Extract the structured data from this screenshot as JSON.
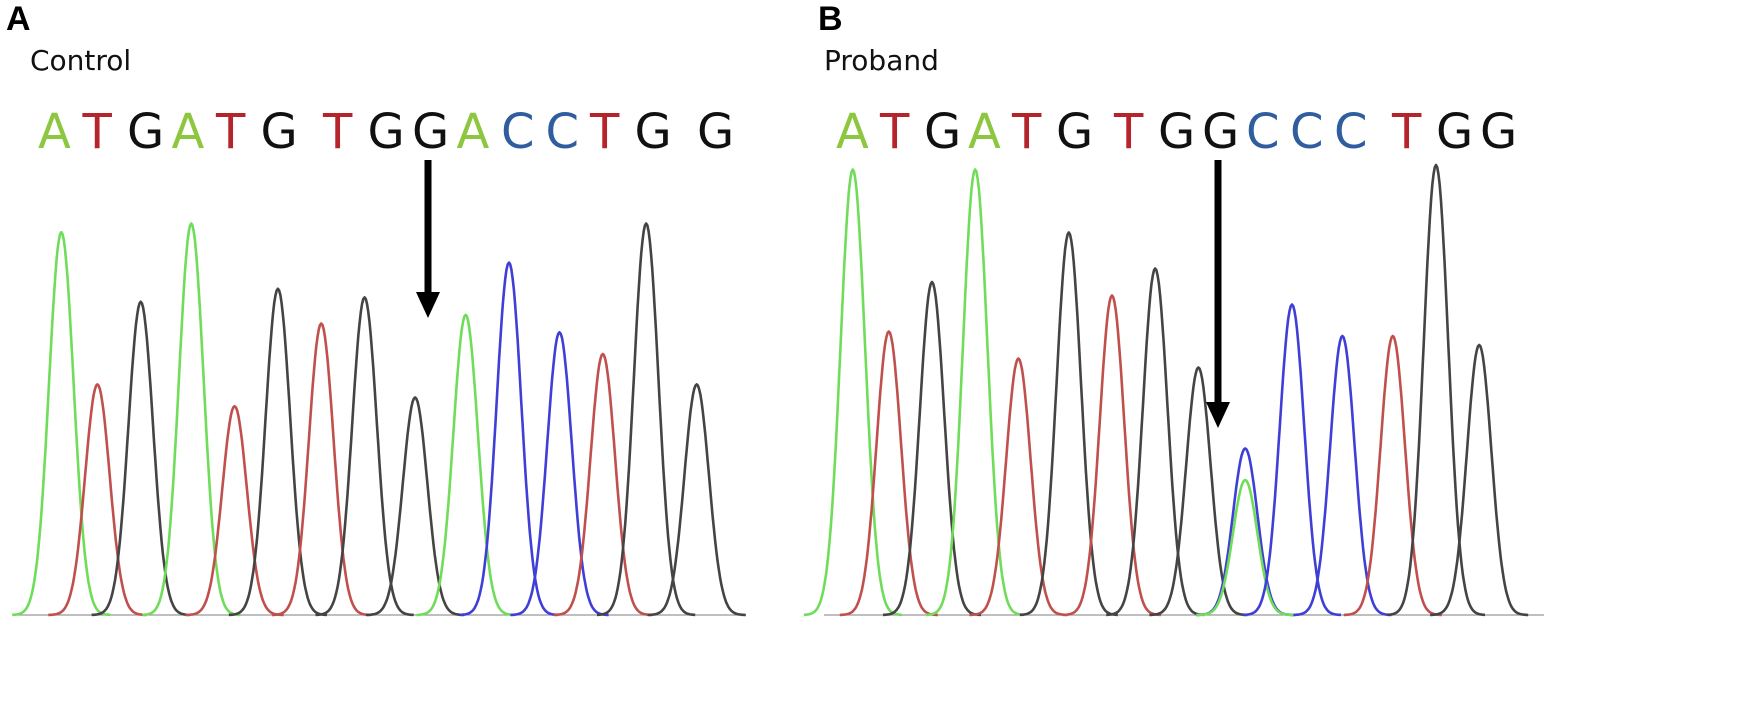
{
  "colors": {
    "A": "#8dc63f",
    "T": "#b5242a",
    "G": "#111111",
    "C": "#2f5d9e"
  },
  "trace_colors": {
    "A": "#6fdd5a",
    "T": "#c0504d",
    "G": "#444444",
    "C": "#3f3fd8"
  },
  "chart_data": [
    {
      "type": "line",
      "panel_label": "A",
      "title": "Control",
      "sequence": [
        "A",
        "T",
        "G",
        "A",
        "T",
        "G",
        " ",
        "T",
        "G",
        "G",
        "A",
        "C",
        "C",
        "T",
        "G",
        " ",
        "G"
      ],
      "highlight_base_index": 9,
      "ylim": [
        0,
        1
      ],
      "peaks": [
        {
          "base": "A",
          "x": 0.06,
          "height": 0.88
        },
        {
          "base": "T",
          "x": 0.11,
          "height": 0.53
        },
        {
          "base": "G",
          "x": 0.17,
          "height": 0.72
        },
        {
          "base": "A",
          "x": 0.24,
          "height": 0.9
        },
        {
          "base": "T",
          "x": 0.3,
          "height": 0.48
        },
        {
          "base": "G",
          "x": 0.36,
          "height": 0.75
        },
        {
          "base": "T",
          "x": 0.42,
          "height": 0.67
        },
        {
          "base": "G",
          "x": 0.48,
          "height": 0.73
        },
        {
          "base": "G",
          "x": 0.55,
          "height": 0.5
        },
        {
          "base": "A",
          "x": 0.62,
          "height": 0.69
        },
        {
          "base": "C",
          "x": 0.68,
          "height": 0.81
        },
        {
          "base": "C",
          "x": 0.75,
          "height": 0.65
        },
        {
          "base": "T",
          "x": 0.81,
          "height": 0.6
        },
        {
          "base": "G",
          "x": 0.87,
          "height": 0.9
        },
        {
          "base": "G",
          "x": 0.94,
          "height": 0.53
        }
      ]
    },
    {
      "type": "line",
      "panel_label": "B",
      "title": "Proband",
      "sequence": [
        "A",
        "T",
        "G",
        "A",
        "T",
        "G",
        " ",
        "T",
        "G",
        "G",
        "C",
        "C",
        "C",
        " ",
        "T",
        "G",
        "G"
      ],
      "highlight_base_index": 9,
      "ylim": [
        0,
        1
      ],
      "peaks": [
        {
          "base": "A",
          "x": 0.04,
          "height": 0.99
        },
        {
          "base": "T",
          "x": 0.09,
          "height": 0.63
        },
        {
          "base": "G",
          "x": 0.15,
          "height": 0.74
        },
        {
          "base": "A",
          "x": 0.21,
          "height": 0.99
        },
        {
          "base": "T",
          "x": 0.27,
          "height": 0.57
        },
        {
          "base": "G",
          "x": 0.34,
          "height": 0.85
        },
        {
          "base": "T",
          "x": 0.4,
          "height": 0.71
        },
        {
          "base": "G",
          "x": 0.46,
          "height": 0.77
        },
        {
          "base": "G",
          "x": 0.52,
          "height": 0.55
        },
        {
          "base": "C",
          "x": 0.585,
          "height": 0.37
        },
        {
          "base": "A",
          "x": 0.585,
          "height": 0.3
        },
        {
          "base": "C",
          "x": 0.65,
          "height": 0.69
        },
        {
          "base": "C",
          "x": 0.72,
          "height": 0.62
        },
        {
          "base": "T",
          "x": 0.79,
          "height": 0.62
        },
        {
          "base": "G",
          "x": 0.85,
          "height": 1.0
        },
        {
          "base": "G",
          "x": 0.91,
          "height": 0.6
        }
      ]
    }
  ]
}
